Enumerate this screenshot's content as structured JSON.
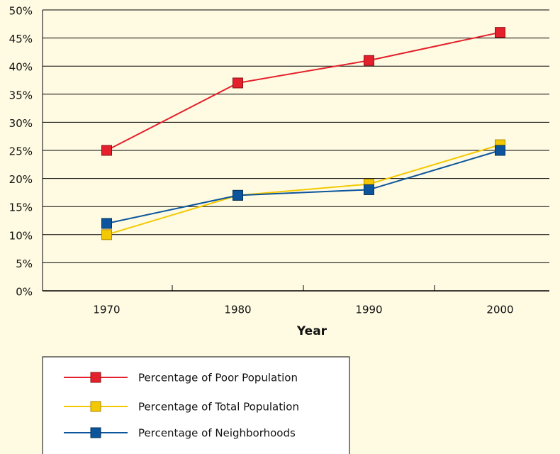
{
  "chart_data": {
    "type": "line",
    "xlabel": "Year",
    "categories": [
      "1970",
      "1980",
      "1990",
      "2000"
    ],
    "series": [
      {
        "name": "Percentage of Poor Population",
        "color": "#e3202b",
        "values": [
          25,
          37,
          41,
          46
        ]
      },
      {
        "name": "Percentage of Total Population",
        "color": "#f4c800",
        "values": [
          10,
          17,
          19,
          26
        ]
      },
      {
        "name": "Percentage of Neighborhoods",
        "color": "#0c559c",
        "values": [
          12,
          17,
          18,
          25
        ]
      }
    ],
    "ylim": [
      0,
      50
    ],
    "yticks": [
      {
        "value": 0,
        "label": "0%"
      },
      {
        "value": 5,
        "label": "5%"
      },
      {
        "value": 10,
        "label": "10%"
      },
      {
        "value": 15,
        "label": "15%"
      },
      {
        "value": 20,
        "label": "20%"
      },
      {
        "value": 25,
        "label": "25%"
      },
      {
        "value": 30,
        "label": "30%"
      },
      {
        "value": 35,
        "label": "35%"
      },
      {
        "value": 40,
        "label": "40%"
      },
      {
        "value": 45,
        "label": "45%"
      },
      {
        "value": 50,
        "label": "50%"
      }
    ],
    "grid": true
  }
}
